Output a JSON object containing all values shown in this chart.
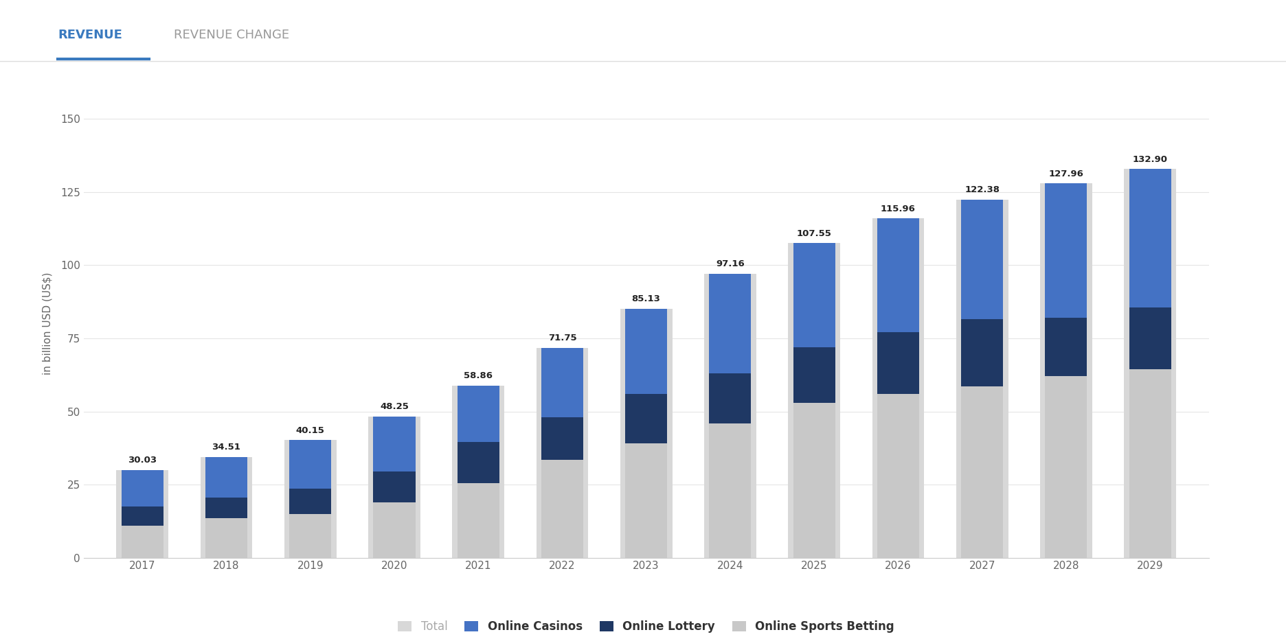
{
  "years": [
    2017,
    2018,
    2019,
    2020,
    2021,
    2022,
    2023,
    2024,
    2025,
    2026,
    2027,
    2028,
    2029
  ],
  "totals": [
    30.03,
    34.51,
    40.15,
    48.25,
    58.86,
    71.75,
    85.13,
    97.16,
    107.55,
    115.96,
    122.38,
    127.96,
    132.9
  ],
  "sports_betting": [
    11.0,
    13.5,
    15.0,
    19.0,
    25.5,
    33.5,
    39.0,
    46.0,
    53.0,
    56.0,
    58.5,
    62.0,
    64.5
  ],
  "lottery": [
    6.5,
    7.0,
    8.5,
    10.5,
    14.0,
    14.5,
    17.0,
    17.0,
    19.0,
    21.0,
    23.0,
    20.0,
    21.0
  ],
  "color_casinos": "#4472C4",
  "color_lottery": "#1F3864",
  "color_sports_betting": "#c8c8c8",
  "color_total_bg": "#d8d8d8",
  "bg_color": "#ffffff",
  "grid_color": "#e5e5e5",
  "ylabel": "in billion USD (US$)",
  "ylim": [
    0,
    160
  ],
  "yticks": [
    0,
    25,
    50,
    75,
    100,
    125,
    150
  ],
  "tab_revenue": "REVENUE",
  "tab_revenue_change": "REVENUE CHANGE",
  "legend_total": "Total",
  "legend_casinos": "Online Casinos",
  "legend_lottery": "Online Lottery",
  "legend_sports_betting": "Online Sports Betting"
}
